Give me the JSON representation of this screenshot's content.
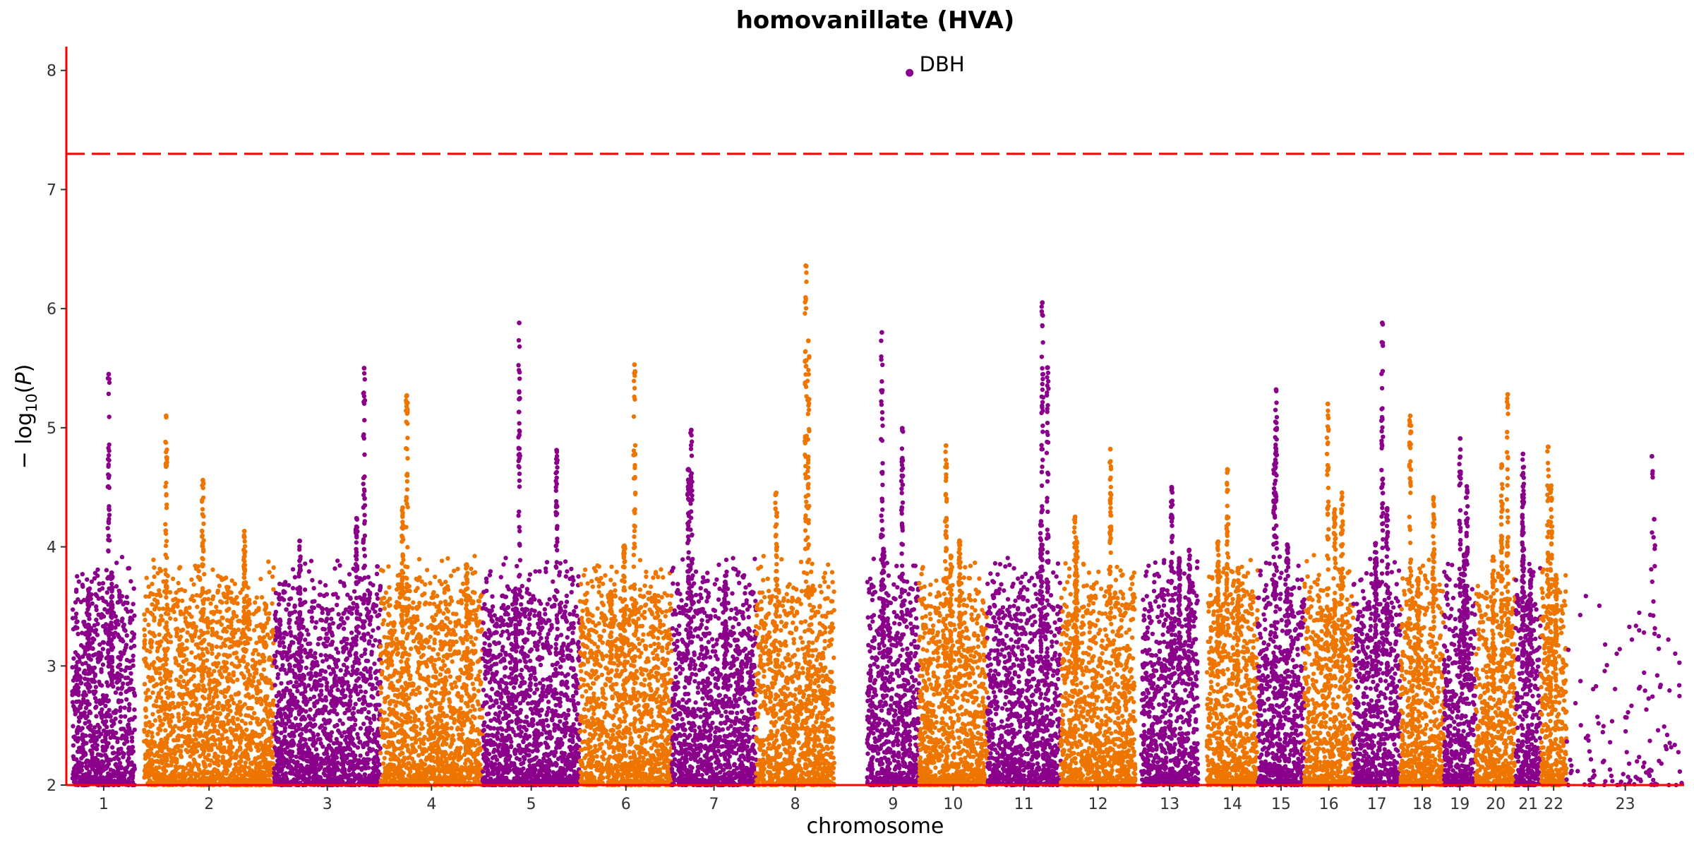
{
  "chart_data": {
    "type": "scatter",
    "title": "homovanillate (HVA)",
    "xlabel": "chromosome",
    "ylabel": "−log10(P)",
    "ylim": [
      2,
      8.2
    ],
    "yticks": [
      2,
      3,
      4,
      5,
      6,
      7,
      8
    ],
    "grid": false,
    "legend": "none",
    "significance_threshold": 7.3,
    "colors": {
      "odd_chromosomes": "#8B008B",
      "even_chromosomes": "#EE7600",
      "threshold": "#FF0000",
      "axis": "#FF0000"
    },
    "chromosomes": [
      {
        "label": "1",
        "start": 0,
        "end": 1.15,
        "gap": 0.1,
        "peak": 5.45
      },
      {
        "label": "2",
        "start": 1.3,
        "end": 3.48,
        "peak": 5.1
      },
      {
        "label": "3",
        "start": 3.48,
        "end": 5.26,
        "peak": 5.5
      },
      {
        "label": "4",
        "start": 5.26,
        "end": 6.97,
        "peak": 5.27
      },
      {
        "label": "5",
        "start": 6.97,
        "end": 8.6,
        "peak": 5.88
      },
      {
        "label": "6",
        "start": 8.6,
        "end": 10.14,
        "peak": 5.53
      },
      {
        "label": "7",
        "start": 10.14,
        "end": 11.55,
        "peak": 4.98
      },
      {
        "label": "8",
        "start": 11.55,
        "end": 12.86,
        "peak": 6.36
      },
      {
        "label": "9",
        "start": 12.86,
        "end": 14.28,
        "gap": 0.55,
        "peak": 5.8
      },
      {
        "label": "10",
        "start": 14.28,
        "end": 15.42,
        "peak": 4.85
      },
      {
        "label": "11",
        "start": 15.42,
        "end": 16.65,
        "peak": 6.05
      },
      {
        "label": "12",
        "start": 16.65,
        "end": 17.9,
        "peak": 4.82
      },
      {
        "label": "13",
        "start": 17.9,
        "end": 18.95,
        "gap": 0.1,
        "peak": 4.5
      },
      {
        "label": "14",
        "start": 18.95,
        "end": 19.95,
        "gap": 0.15,
        "peak": 4.65
      },
      {
        "label": "15",
        "start": 19.95,
        "end": 20.73,
        "peak": 5.32
      },
      {
        "label": "16",
        "start": 20.73,
        "end": 21.55,
        "peak": 5.2
      },
      {
        "label": "17",
        "start": 21.55,
        "end": 22.34,
        "peak": 5.88
      },
      {
        "label": "18",
        "start": 22.34,
        "end": 23.07,
        "peak": 5.1
      },
      {
        "label": "19",
        "start": 23.07,
        "end": 23.6,
        "peak": 4.91
      },
      {
        "label": "20",
        "start": 23.6,
        "end": 24.27,
        "peak": 5.28
      },
      {
        "label": "21",
        "start": 24.27,
        "end": 24.69,
        "peak": 4.78
      },
      {
        "label": "22",
        "start": 24.69,
        "end": 25.12,
        "peak": 4.84
      },
      {
        "label": "23",
        "start": 25.12,
        "end": 27.09,
        "peak": 4.76,
        "sparse": true
      }
    ],
    "highlight": {
      "label": "DBH",
      "chromosome": "9",
      "x": 14.12,
      "y": 7.98
    }
  }
}
